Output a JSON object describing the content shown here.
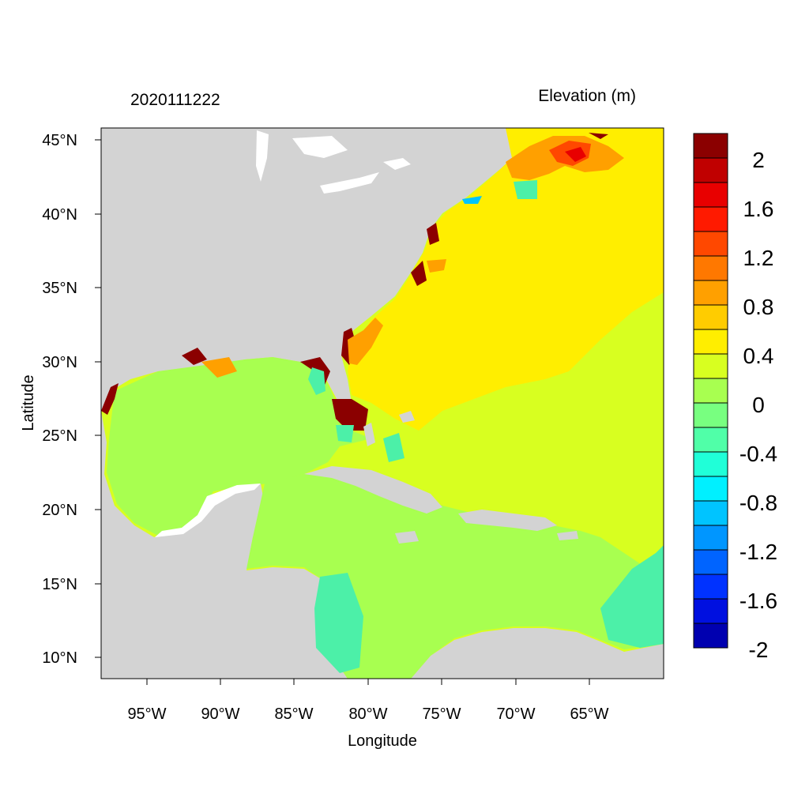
{
  "figure": {
    "left_title": "2020111222",
    "right_title": "Elevation (m)",
    "xlabel": "Longitude",
    "ylabel": "Latitude"
  },
  "axes": {
    "x_ticks": [
      "95°W",
      "90°W",
      "85°W",
      "80°W",
      "75°W",
      "70°W",
      "65°W"
    ],
    "y_ticks": [
      "45°N",
      "40°N",
      "35°N",
      "30°N",
      "25°N",
      "20°N",
      "15°N",
      "10°N"
    ]
  },
  "colorbar": {
    "labels": [
      "2",
      "1.6",
      "1.2",
      "0.8",
      "0.4",
      "0",
      "-0.4",
      "-0.8",
      "-1.2",
      "-1.6",
      "-2"
    ],
    "colors": [
      "#8b0000",
      "#c00000",
      "#e80000",
      "#ff1a00",
      "#ff4800",
      "#ff7800",
      "#ffa000",
      "#ffcc00",
      "#ffee00",
      "#d8ff20",
      "#a8ff50",
      "#78ff80",
      "#50ffa8",
      "#20ffd8",
      "#00f0ff",
      "#00c4ff",
      "#0096ff",
      "#0064ff",
      "#0032ff",
      "#0010e0",
      "#0000b0"
    ]
  },
  "colors": {
    "land": "#d3d3d3",
    "lakes": "#ffffff",
    "gulf_caribbean": "#a8ff50",
    "atlantic_inner": "#ffee00",
    "atlantic_outer": "#d8ff20",
    "surge_high": "#8b0000",
    "surge_mid": "#ffa000",
    "surge_low": "#4cf0a8"
  }
}
